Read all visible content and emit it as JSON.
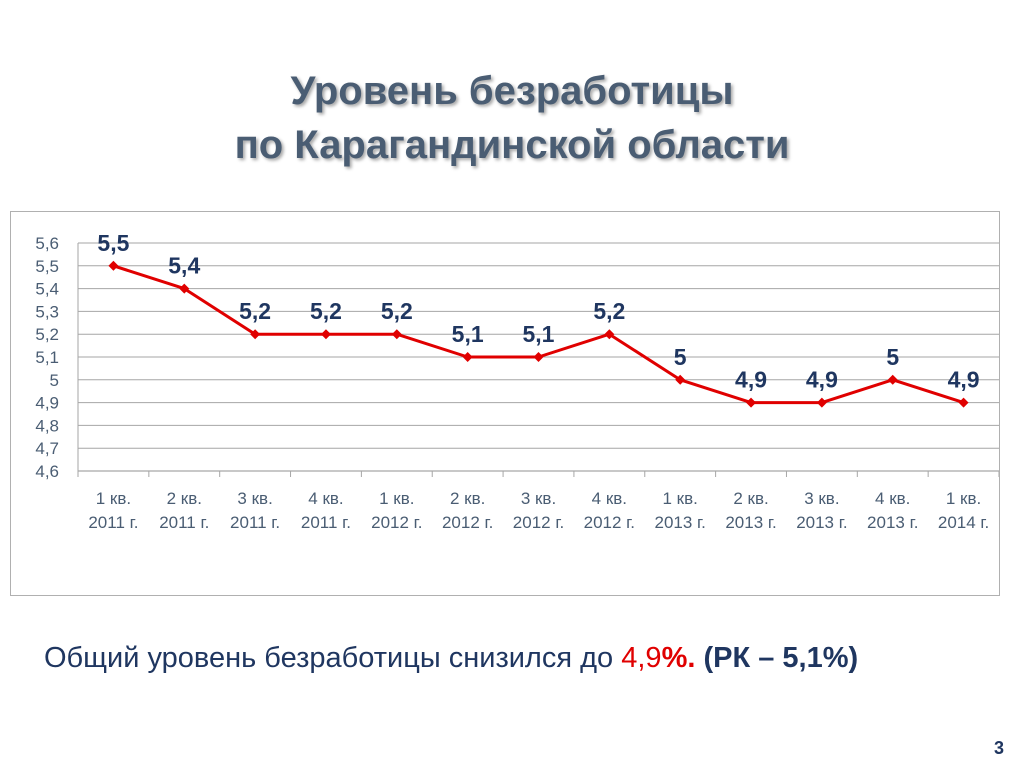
{
  "slide": {
    "title_line1": "Уровень безработицы",
    "title_line2": "по Карагандинской области",
    "summary_text": "Общий уровень безработицы снизился до ",
    "summary_value": "4,9",
    "summary_percent": "%.",
    "summary_rk": " (РК – 5,1%)",
    "page_number": "3"
  },
  "colors": {
    "title": "#4a5d73",
    "line": "#e00000",
    "label": "#1f3660",
    "grid": "#a6a6a6",
    "axis_text": "#4a5d73"
  },
  "chart_data": {
    "type": "line",
    "categories": [
      [
        "1 кв.",
        "2011 г."
      ],
      [
        "2 кв.",
        "2011 г."
      ],
      [
        "3 кв.",
        "2011 г."
      ],
      [
        "4 кв.",
        "2011 г."
      ],
      [
        "1 кв.",
        "2012 г."
      ],
      [
        "2 кв.",
        "2012 г."
      ],
      [
        "3 кв.",
        "2012 г."
      ],
      [
        "4 кв.",
        "2012 г."
      ],
      [
        "1 кв.",
        "2013 г."
      ],
      [
        "2 кв.",
        "2013 г."
      ],
      [
        "3 кв.",
        "2013 г."
      ],
      [
        "4 кв.",
        "2013 г."
      ],
      [
        "1 кв.",
        "2014 г."
      ]
    ],
    "values": [
      5.5,
      5.4,
      5.2,
      5.2,
      5.2,
      5.1,
      5.1,
      5.2,
      5.0,
      4.9,
      4.9,
      5.0,
      4.9
    ],
    "data_labels": [
      "5,5",
      "5,4",
      "5,2",
      "5,2",
      "5,2",
      "5,1",
      "5,1",
      "5,2",
      "5",
      "4,9",
      "4,9",
      "5",
      "4,9"
    ],
    "yticks": [
      4.6,
      4.7,
      4.8,
      4.9,
      5.0,
      5.1,
      5.2,
      5.3,
      5.4,
      5.5,
      5.6
    ],
    "ytick_labels": [
      "4,6",
      "4,7",
      "4,8",
      "4,9",
      "5",
      "5,1",
      "5,2",
      "5,3",
      "5,4",
      "5,5",
      "5,6"
    ],
    "ylim": [
      4.6,
      5.6
    ],
    "grid": true,
    "legend": false
  }
}
